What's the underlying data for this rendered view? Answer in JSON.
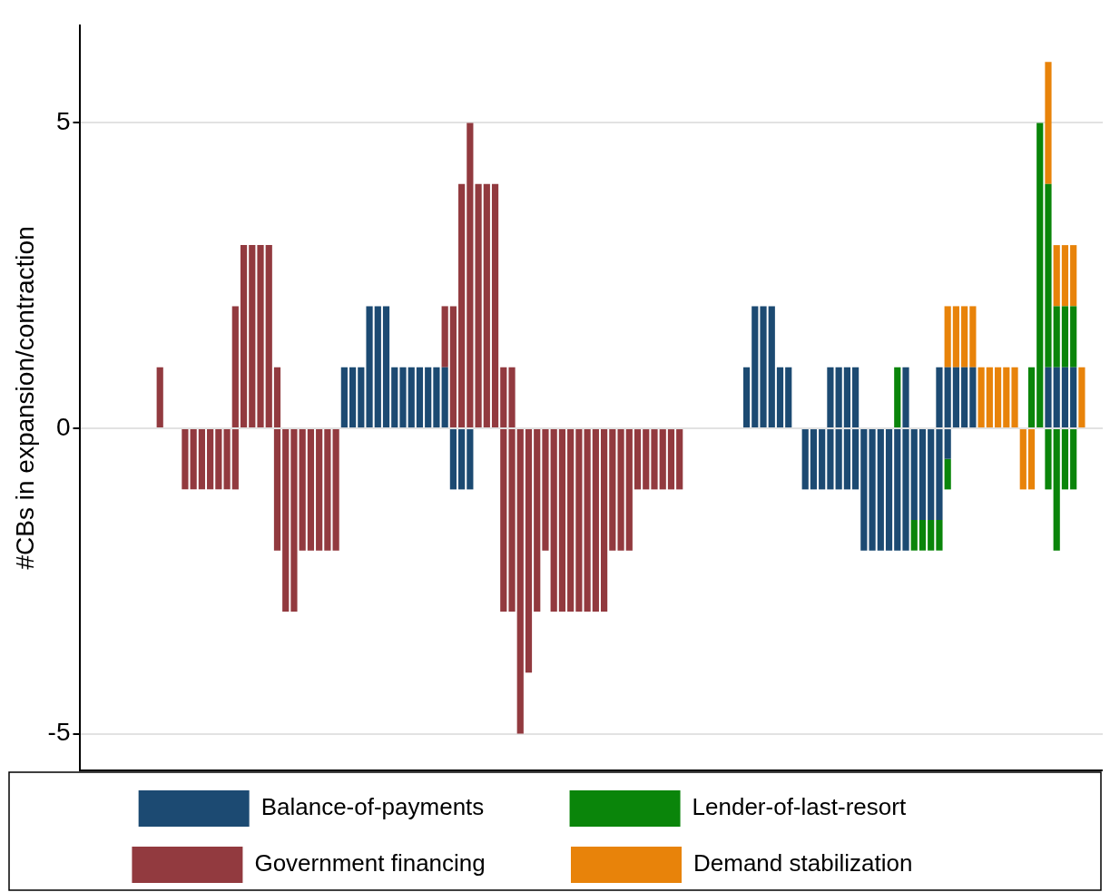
{
  "chart_data": {
    "type": "bar",
    "ylabel": "#CBs in expansion/contraction",
    "stacked": true,
    "ylim": [
      -5.6,
      6.6
    ],
    "yticks": [
      -5,
      0,
      5
    ],
    "grid": "y",
    "legend": "bottom",
    "tick_labels": "y",
    "categories": [
      null,
      null,
      null,
      null,
      null,
      null,
      null,
      null,
      null,
      null,
      null,
      null,
      null,
      null,
      null,
      null,
      null,
      null,
      null,
      null,
      null,
      null,
      null,
      null,
      null,
      null,
      null,
      null,
      null,
      null,
      null,
      null,
      null,
      null,
      null,
      null,
      null,
      null,
      null,
      null,
      null,
      null,
      null,
      null,
      null,
      null,
      null,
      null,
      null,
      null,
      null,
      null,
      null,
      null,
      null,
      null,
      null,
      null,
      null,
      null,
      null,
      null,
      null,
      null,
      null,
      null,
      null,
      null,
      null,
      null,
      null,
      null,
      null,
      null,
      null,
      null,
      null,
      null,
      null,
      null,
      null,
      null,
      null,
      null,
      null,
      null,
      null,
      null,
      null,
      null,
      null,
      null,
      null,
      null,
      null,
      null,
      null,
      null,
      null,
      null,
      null,
      null,
      null,
      null,
      null,
      null,
      null,
      null,
      null,
      null,
      null,
      null,
      null,
      null,
      null,
      null,
      null,
      null,
      null,
      null,
      null,
      null
    ],
    "series": [
      {
        "name": "Balance-of-payments",
        "color": "#1c4a72",
        "values": [
          null,
          null,
          null,
          null,
          null,
          null,
          null,
          null,
          null,
          null,
          null,
          null,
          null,
          null,
          null,
          null,
          null,
          null,
          null,
          null,
          null,
          null,
          null,
          null,
          null,
          null,
          null,
          null,
          null,
          null,
          null,
          1,
          1,
          1,
          2,
          2,
          2,
          1,
          1,
          1,
          1,
          1,
          1,
          1,
          null,
          null,
          null,
          null,
          null,
          null,
          null,
          null,
          null,
          null,
          null,
          null,
          null,
          null,
          null,
          null,
          null,
          null,
          null,
          null,
          null,
          null,
          null,
          null,
          null,
          null,
          null,
          null,
          null,
          null,
          null,
          null,
          null,
          null,
          null,
          1,
          2,
          2,
          2,
          1,
          1,
          null,
          null,
          null,
          null,
          1,
          1,
          1,
          1,
          null,
          null,
          null,
          null,
          null,
          1,
          null,
          null,
          null,
          1,
          1,
          1,
          1,
          1,
          null,
          null,
          null,
          null,
          null,
          null,
          null,
          null,
          1,
          1,
          1,
          1,
          null,
          null,
          null
        ]
      },
      {
        "name": "Government financing",
        "color": "#923a3f",
        "values": [
          null,
          null,
          null,
          null,
          null,
          null,
          null,
          null,
          null,
          1,
          null,
          null,
          null,
          null,
          null,
          null,
          null,
          null,
          2,
          3,
          3,
          3,
          3,
          1,
          null,
          null,
          null,
          null,
          null,
          null,
          null,
          null,
          null,
          null,
          null,
          null,
          null,
          null,
          null,
          null,
          null,
          null,
          null,
          1,
          2,
          4,
          5,
          4,
          4,
          4,
          1,
          1,
          null,
          null,
          null,
          null,
          null,
          null,
          null,
          null,
          null,
          null,
          null,
          null,
          null,
          null,
          null,
          null,
          null,
          null,
          null,
          null,
          null,
          null,
          null,
          null,
          null,
          null,
          null,
          null,
          null,
          null,
          null,
          null,
          null,
          null,
          null,
          null,
          null,
          null,
          null,
          null,
          null,
          null,
          null,
          null,
          null,
          null,
          null,
          null,
          null,
          null,
          null,
          null,
          null,
          null,
          null,
          null,
          null,
          null,
          null,
          null,
          null,
          null,
          null,
          null,
          null,
          null,
          null,
          null,
          null,
          null
        ]
      },
      {
        "name": "Lender-of-last-resort",
        "color": "#0a850a",
        "values": [
          null,
          null,
          null,
          null,
          null,
          null,
          null,
          null,
          null,
          null,
          null,
          null,
          null,
          null,
          null,
          null,
          null,
          null,
          null,
          null,
          null,
          null,
          null,
          null,
          null,
          null,
          null,
          null,
          null,
          null,
          null,
          null,
          null,
          null,
          null,
          null,
          null,
          null,
          null,
          null,
          null,
          null,
          null,
          null,
          null,
          null,
          null,
          null,
          null,
          null,
          null,
          null,
          null,
          null,
          null,
          null,
          null,
          null,
          null,
          null,
          null,
          null,
          null,
          null,
          null,
          null,
          null,
          null,
          null,
          null,
          null,
          null,
          null,
          null,
          null,
          null,
          null,
          null,
          null,
          null,
          null,
          null,
          null,
          null,
          null,
          null,
          null,
          null,
          null,
          null,
          null,
          null,
          null,
          null,
          null,
          null,
          null,
          1,
          null,
          null,
          null,
          null,
          null,
          null,
          null,
          null,
          null,
          null,
          null,
          null,
          null,
          null,
          null,
          1,
          5,
          3,
          1,
          1,
          1,
          null,
          null,
          null
        ]
      },
      {
        "name": "Demand stabilization",
        "color": "#e8830a",
        "values": [
          null,
          null,
          null,
          null,
          null,
          null,
          null,
          null,
          null,
          null,
          null,
          null,
          null,
          null,
          null,
          null,
          null,
          null,
          null,
          null,
          null,
          null,
          null,
          null,
          null,
          null,
          null,
          null,
          null,
          null,
          null,
          null,
          null,
          null,
          null,
          null,
          null,
          null,
          null,
          null,
          null,
          null,
          null,
          null,
          null,
          null,
          null,
          null,
          null,
          null,
          null,
          null,
          null,
          null,
          null,
          null,
          null,
          null,
          null,
          null,
          null,
          null,
          null,
          null,
          null,
          null,
          null,
          null,
          null,
          null,
          null,
          null,
          null,
          null,
          null,
          null,
          null,
          null,
          null,
          null,
          null,
          null,
          null,
          null,
          null,
          null,
          null,
          null,
          null,
          null,
          null,
          null,
          null,
          null,
          null,
          null,
          null,
          null,
          null,
          null,
          null,
          null,
          null,
          1,
          1,
          1,
          1,
          1,
          1,
          1,
          1,
          1,
          null,
          null,
          null,
          2,
          1,
          1,
          1,
          1,
          null,
          null
        ]
      },
      {
        "color": "#1c4a72",
        "values": [
          null,
          null,
          null,
          null,
          null,
          null,
          null,
          null,
          null,
          null,
          null,
          null,
          null,
          null,
          null,
          null,
          null,
          null,
          null,
          null,
          null,
          null,
          null,
          null,
          null,
          null,
          null,
          null,
          null,
          null,
          null,
          null,
          null,
          null,
          null,
          null,
          null,
          null,
          null,
          null,
          null,
          null,
          null,
          null,
          -1,
          -1,
          -1,
          null,
          null,
          null,
          null,
          null,
          null,
          null,
          null,
          null,
          null,
          null,
          null,
          null,
          null,
          null,
          null,
          null,
          null,
          null,
          null,
          null,
          null,
          null,
          null,
          null,
          null,
          null,
          null,
          null,
          null,
          null,
          null,
          null,
          null,
          null,
          null,
          null,
          null,
          null,
          -1,
          -1,
          -1,
          -1,
          -1,
          -1,
          -1,
          -2,
          -2,
          -2,
          -2,
          -2,
          -2,
          -1.5,
          -1.5,
          -1.5,
          -1.5,
          -0.5,
          null,
          null,
          null,
          null,
          null,
          null,
          null,
          null,
          null,
          null,
          null,
          null,
          null,
          null,
          null,
          null,
          null,
          null
        ]
      },
      {
        "color": "#923a3f",
        "values": [
          null,
          null,
          null,
          null,
          null,
          null,
          null,
          null,
          null,
          null,
          null,
          null,
          -1,
          -1,
          -1,
          -1,
          -1,
          -1,
          -1,
          null,
          null,
          null,
          null,
          -2,
          -3,
          -3,
          -2,
          -2,
          -2,
          -2,
          -2,
          null,
          null,
          null,
          null,
          null,
          null,
          null,
          null,
          null,
          null,
          null,
          null,
          null,
          null,
          null,
          null,
          null,
          null,
          null,
          -3,
          -3,
          -5,
          -4,
          -3,
          -2,
          -3,
          -3,
          -3,
          -3,
          -3,
          -3,
          -3,
          -2,
          -2,
          -2,
          -1,
          -1,
          -1,
          -1,
          -1,
          -1,
          null,
          null,
          null,
          null,
          null,
          null,
          null,
          null,
          null,
          null,
          null,
          null,
          null,
          null,
          null,
          null,
          null,
          null,
          null,
          null,
          null,
          null,
          null,
          null,
          null,
          null,
          null,
          null,
          null,
          null,
          null,
          null,
          null,
          null,
          null,
          null,
          null,
          null,
          null,
          null,
          null,
          null,
          null,
          null,
          null,
          null,
          null,
          null,
          null,
          null
        ]
      },
      {
        "color": "#0a850a",
        "values": [
          null,
          null,
          null,
          null,
          null,
          null,
          null,
          null,
          null,
          null,
          null,
          null,
          null,
          null,
          null,
          null,
          null,
          null,
          null,
          null,
          null,
          null,
          null,
          null,
          null,
          null,
          null,
          null,
          null,
          null,
          null,
          null,
          null,
          null,
          null,
          null,
          null,
          null,
          null,
          null,
          null,
          null,
          null,
          null,
          null,
          null,
          null,
          null,
          null,
          null,
          null,
          null,
          null,
          null,
          null,
          null,
          null,
          null,
          null,
          null,
          null,
          null,
          null,
          null,
          null,
          null,
          null,
          null,
          null,
          null,
          null,
          null,
          null,
          null,
          null,
          null,
          null,
          null,
          null,
          null,
          null,
          null,
          null,
          null,
          null,
          null,
          null,
          null,
          null,
          null,
          null,
          null,
          null,
          null,
          null,
          null,
          null,
          null,
          null,
          -0.5,
          -0.5,
          -0.5,
          -0.5,
          -0.5,
          null,
          null,
          null,
          null,
          null,
          null,
          null,
          null,
          null,
          null,
          null,
          -1,
          -2,
          -1,
          -1,
          null,
          null,
          null
        ]
      },
      {
        "color": "#e8830a",
        "values": [
          null,
          null,
          null,
          null,
          null,
          null,
          null,
          null,
          null,
          null,
          null,
          null,
          null,
          null,
          null,
          null,
          null,
          null,
          null,
          null,
          null,
          null,
          null,
          null,
          null,
          null,
          null,
          null,
          null,
          null,
          null,
          null,
          null,
          null,
          null,
          null,
          null,
          null,
          null,
          null,
          null,
          null,
          null,
          null,
          null,
          null,
          null,
          null,
          null,
          null,
          null,
          null,
          null,
          null,
          null,
          null,
          null,
          null,
          null,
          null,
          null,
          null,
          null,
          null,
          null,
          null,
          null,
          null,
          null,
          null,
          null,
          null,
          null,
          null,
          null,
          null,
          null,
          null,
          null,
          null,
          null,
          null,
          null,
          null,
          null,
          null,
          null,
          null,
          null,
          null,
          null,
          null,
          null,
          null,
          null,
          null,
          null,
          null,
          null,
          null,
          null,
          null,
          null,
          null,
          null,
          null,
          null,
          null,
          null,
          null,
          null,
          null,
          -1,
          -1,
          null,
          null,
          null,
          null,
          null,
          null,
          null,
          null
        ]
      }
    ]
  }
}
